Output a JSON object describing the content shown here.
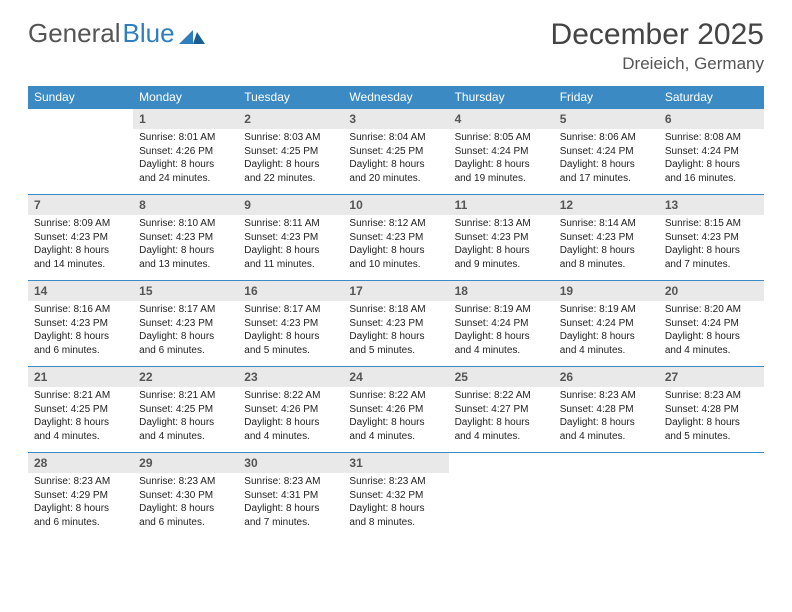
{
  "brand": {
    "part1": "General",
    "part2": "Blue"
  },
  "title": "December 2025",
  "location": "Dreieich, Germany",
  "colors": {
    "header_bg": "#3b8ac4",
    "header_text": "#ffffff",
    "daynum_bg": "#e9e9e9",
    "row_border": "#3b8ac4",
    "body_text": "#222222",
    "logo_gray": "#555555",
    "logo_blue": "#2f7fbf"
  },
  "day_headers": [
    "Sunday",
    "Monday",
    "Tuesday",
    "Wednesday",
    "Thursday",
    "Friday",
    "Saturday"
  ],
  "weeks": [
    [
      null,
      {
        "n": "1",
        "sr": "8:01 AM",
        "ss": "4:26 PM",
        "dl": "8 hours and 24 minutes."
      },
      {
        "n": "2",
        "sr": "8:03 AM",
        "ss": "4:25 PM",
        "dl": "8 hours and 22 minutes."
      },
      {
        "n": "3",
        "sr": "8:04 AM",
        "ss": "4:25 PM",
        "dl": "8 hours and 20 minutes."
      },
      {
        "n": "4",
        "sr": "8:05 AM",
        "ss": "4:24 PM",
        "dl": "8 hours and 19 minutes."
      },
      {
        "n": "5",
        "sr": "8:06 AM",
        "ss": "4:24 PM",
        "dl": "8 hours and 17 minutes."
      },
      {
        "n": "6",
        "sr": "8:08 AM",
        "ss": "4:24 PM",
        "dl": "8 hours and 16 minutes."
      }
    ],
    [
      {
        "n": "7",
        "sr": "8:09 AM",
        "ss": "4:23 PM",
        "dl": "8 hours and 14 minutes."
      },
      {
        "n": "8",
        "sr": "8:10 AM",
        "ss": "4:23 PM",
        "dl": "8 hours and 13 minutes."
      },
      {
        "n": "9",
        "sr": "8:11 AM",
        "ss": "4:23 PM",
        "dl": "8 hours and 11 minutes."
      },
      {
        "n": "10",
        "sr": "8:12 AM",
        "ss": "4:23 PM",
        "dl": "8 hours and 10 minutes."
      },
      {
        "n": "11",
        "sr": "8:13 AM",
        "ss": "4:23 PM",
        "dl": "8 hours and 9 minutes."
      },
      {
        "n": "12",
        "sr": "8:14 AM",
        "ss": "4:23 PM",
        "dl": "8 hours and 8 minutes."
      },
      {
        "n": "13",
        "sr": "8:15 AM",
        "ss": "4:23 PM",
        "dl": "8 hours and 7 minutes."
      }
    ],
    [
      {
        "n": "14",
        "sr": "8:16 AM",
        "ss": "4:23 PM",
        "dl": "8 hours and 6 minutes."
      },
      {
        "n": "15",
        "sr": "8:17 AM",
        "ss": "4:23 PM",
        "dl": "8 hours and 6 minutes."
      },
      {
        "n": "16",
        "sr": "8:17 AM",
        "ss": "4:23 PM",
        "dl": "8 hours and 5 minutes."
      },
      {
        "n": "17",
        "sr": "8:18 AM",
        "ss": "4:23 PM",
        "dl": "8 hours and 5 minutes."
      },
      {
        "n": "18",
        "sr": "8:19 AM",
        "ss": "4:24 PM",
        "dl": "8 hours and 4 minutes."
      },
      {
        "n": "19",
        "sr": "8:19 AM",
        "ss": "4:24 PM",
        "dl": "8 hours and 4 minutes."
      },
      {
        "n": "20",
        "sr": "8:20 AM",
        "ss": "4:24 PM",
        "dl": "8 hours and 4 minutes."
      }
    ],
    [
      {
        "n": "21",
        "sr": "8:21 AM",
        "ss": "4:25 PM",
        "dl": "8 hours and 4 minutes."
      },
      {
        "n": "22",
        "sr": "8:21 AM",
        "ss": "4:25 PM",
        "dl": "8 hours and 4 minutes."
      },
      {
        "n": "23",
        "sr": "8:22 AM",
        "ss": "4:26 PM",
        "dl": "8 hours and 4 minutes."
      },
      {
        "n": "24",
        "sr": "8:22 AM",
        "ss": "4:26 PM",
        "dl": "8 hours and 4 minutes."
      },
      {
        "n": "25",
        "sr": "8:22 AM",
        "ss": "4:27 PM",
        "dl": "8 hours and 4 minutes."
      },
      {
        "n": "26",
        "sr": "8:23 AM",
        "ss": "4:28 PM",
        "dl": "8 hours and 4 minutes."
      },
      {
        "n": "27",
        "sr": "8:23 AM",
        "ss": "4:28 PM",
        "dl": "8 hours and 5 minutes."
      }
    ],
    [
      {
        "n": "28",
        "sr": "8:23 AM",
        "ss": "4:29 PM",
        "dl": "8 hours and 6 minutes."
      },
      {
        "n": "29",
        "sr": "8:23 AM",
        "ss": "4:30 PM",
        "dl": "8 hours and 6 minutes."
      },
      {
        "n": "30",
        "sr": "8:23 AM",
        "ss": "4:31 PM",
        "dl": "8 hours and 7 minutes."
      },
      {
        "n": "31",
        "sr": "8:23 AM",
        "ss": "4:32 PM",
        "dl": "8 hours and 8 minutes."
      },
      null,
      null,
      null
    ]
  ],
  "labels": {
    "sunrise": "Sunrise:",
    "sunset": "Sunset:",
    "daylight": "Daylight:"
  }
}
